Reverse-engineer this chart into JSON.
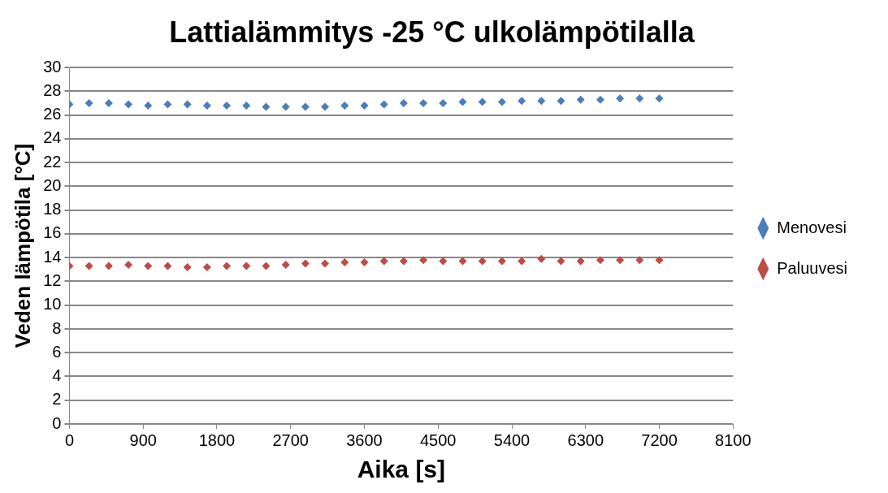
{
  "chart_data": {
    "type": "scatter",
    "title": "Lattialämmitys -25 °C ulkolämpötilalla",
    "xlabel": "Aika [s]",
    "ylabel": "Veden lämpötila [°C]",
    "x": [
      0,
      240,
      480,
      720,
      960,
      1200,
      1440,
      1680,
      1920,
      2160,
      2400,
      2640,
      2880,
      3120,
      3360,
      3600,
      3840,
      4080,
      4320,
      4560,
      4800,
      5040,
      5280,
      5520,
      5760,
      6000,
      6240,
      6480,
      6720,
      6960,
      7200
    ],
    "series": [
      {
        "name": "Menovesi",
        "color": "#4a7ebb",
        "values": [
          26.9,
          27.0,
          27.0,
          26.9,
          26.8,
          26.9,
          26.9,
          26.8,
          26.8,
          26.8,
          26.7,
          26.7,
          26.7,
          26.7,
          26.8,
          26.8,
          26.9,
          27.0,
          27.0,
          27.0,
          27.1,
          27.1,
          27.1,
          27.2,
          27.2,
          27.2,
          27.3,
          27.3,
          27.4,
          27.4,
          27.4
        ]
      },
      {
        "name": "Paluuvesi",
        "color": "#be4b48",
        "values": [
          13.3,
          13.3,
          13.3,
          13.4,
          13.3,
          13.3,
          13.2,
          13.2,
          13.3,
          13.3,
          13.3,
          13.4,
          13.5,
          13.5,
          13.6,
          13.6,
          13.7,
          13.7,
          13.8,
          13.7,
          13.7,
          13.7,
          13.7,
          13.7,
          13.9,
          13.7,
          13.7,
          13.8,
          13.8,
          13.8,
          13.8
        ]
      }
    ],
    "xlim": [
      0,
      8100
    ],
    "xticks": [
      0,
      900,
      1800,
      2700,
      3600,
      4500,
      5400,
      6300,
      7200,
      8100
    ],
    "ylim": [
      0,
      30
    ],
    "yticks": [
      0,
      2,
      4,
      6,
      8,
      10,
      12,
      14,
      16,
      18,
      20,
      22,
      24,
      26,
      28,
      30
    ],
    "grid": "y",
    "legend": "right",
    "marker": "diamond"
  }
}
